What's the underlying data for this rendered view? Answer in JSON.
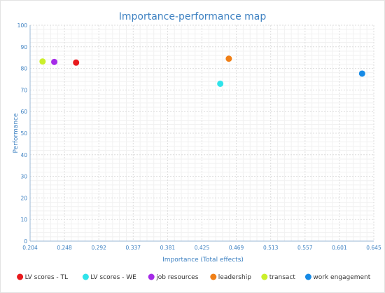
{
  "chart_data": {
    "type": "scatter",
    "title": "Importance-performance map",
    "xlabel": "Importance (Total effects)",
    "ylabel": "Performance",
    "xlim": [
      0.204,
      0.645
    ],
    "ylim": [
      0,
      100
    ],
    "x_ticks": [
      "0.204",
      "0.248",
      "0.292",
      "0.337",
      "0.381",
      "0.425",
      "0.469",
      "0.513",
      "0.557",
      "0.601",
      "0.645"
    ],
    "y_ticks": [
      "0",
      "10",
      "20",
      "30",
      "40",
      "50",
      "60",
      "70",
      "80",
      "90",
      "100"
    ],
    "grid": true,
    "legend_position": "bottom",
    "series": [
      {
        "name": "LV scores - TL",
        "color": "#e8191c",
        "x": 0.263,
        "y": 82.7
      },
      {
        "name": "LV scores - WE",
        "color": "#2fe3ea",
        "x": 0.448,
        "y": 72.9
      },
      {
        "name": "job resources",
        "color": "#a52be8",
        "x": 0.235,
        "y": 83.0
      },
      {
        "name": "leadership",
        "color": "#f07f16",
        "x": 0.459,
        "y": 84.5
      },
      {
        "name": "transact",
        "color": "#cbef2a",
        "x": 0.22,
        "y": 83.2
      },
      {
        "name": "work engagement",
        "color": "#168ae6",
        "x": 0.63,
        "y": 77.6
      }
    ]
  }
}
